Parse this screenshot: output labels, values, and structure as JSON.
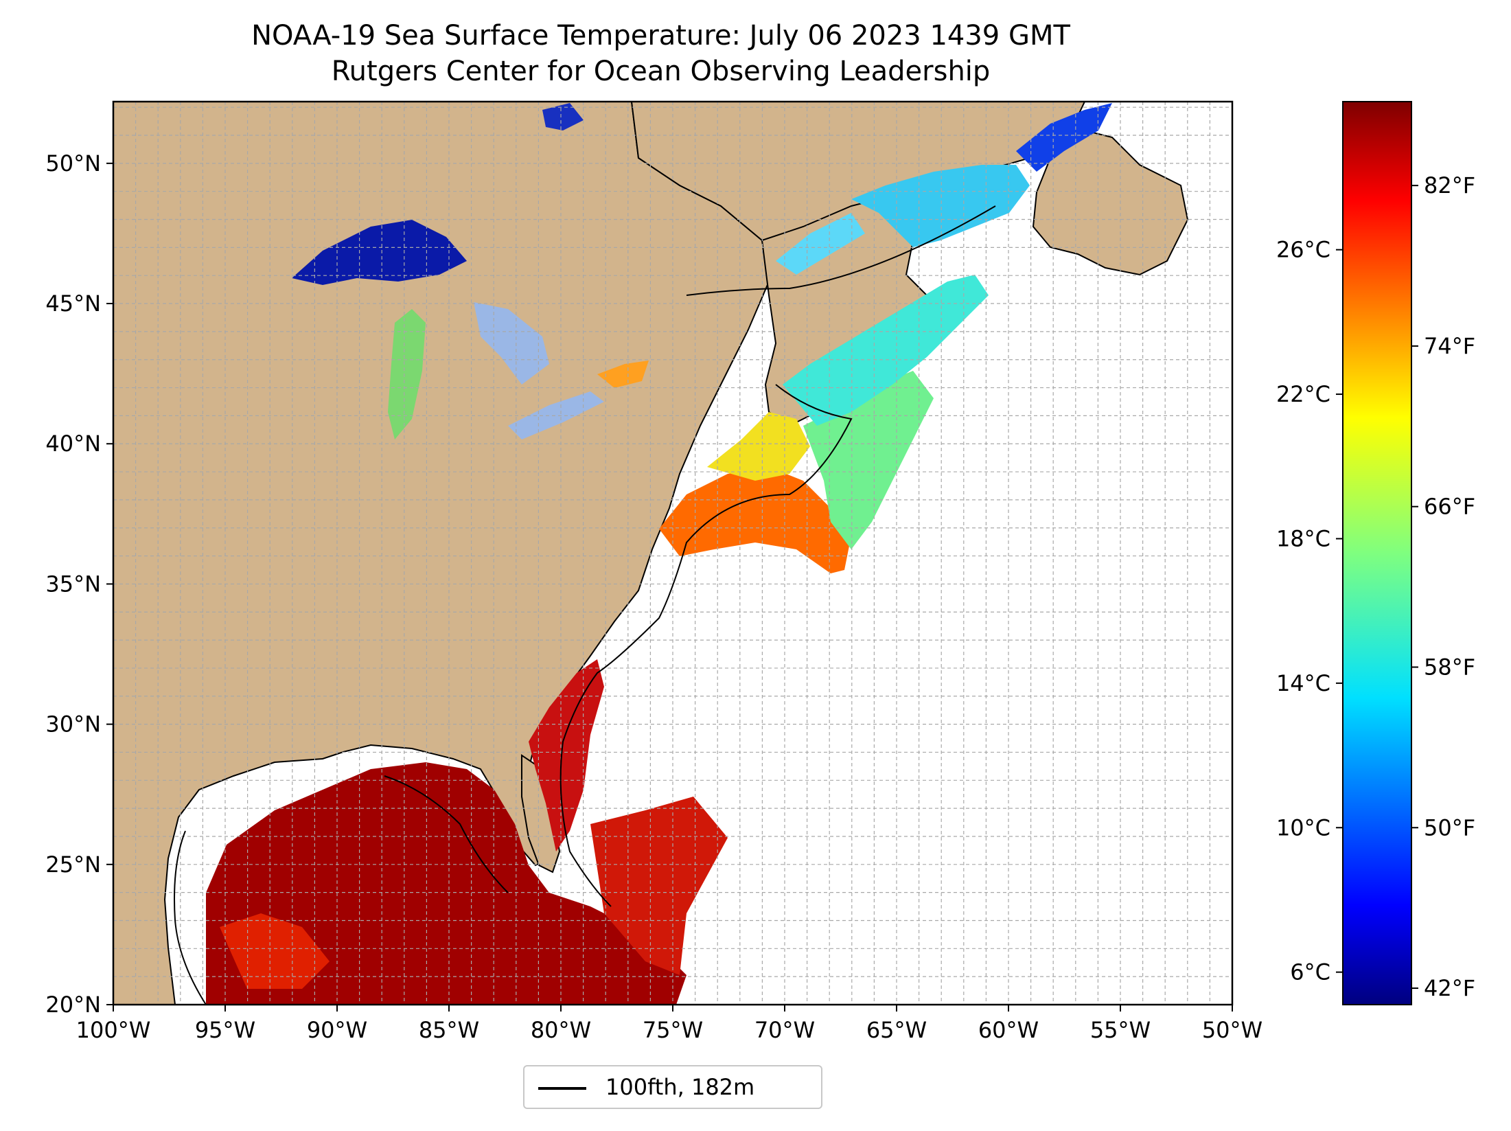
{
  "title": {
    "line1": "NOAA-19 Sea Surface Temperature: July 06 2023 1439 GMT",
    "line2": "Rutgers Center for Ocean Observing Leadership"
  },
  "map": {
    "lon_range": [
      -100,
      -50
    ],
    "lat_range": [
      20,
      52.2
    ],
    "lon_ticks": [
      "100°W",
      "95°W",
      "90°W",
      "85°W",
      "80°W",
      "75°W",
      "70°W",
      "65°W",
      "60°W",
      "55°W",
      "50°W"
    ],
    "lat_ticks": [
      "20°N",
      "25°N",
      "30°N",
      "35°N",
      "40°N",
      "45°N",
      "50°N"
    ],
    "grid": "dashed, 1° spacing",
    "land_color": "#d2b48c",
    "lake_color": "#9ab7e6",
    "coastline_color": "#000000"
  },
  "colorbar": {
    "colormap": "jet",
    "celsius_ticks": [
      "6°C",
      "10°C",
      "14°C",
      "18°C",
      "22°C",
      "26°C"
    ],
    "fahrenheit_ticks": [
      "42°F",
      "50°F",
      "58°F",
      "66°F",
      "74°F",
      "82°F"
    ]
  },
  "legend": {
    "label": "100fth, 182m"
  }
}
